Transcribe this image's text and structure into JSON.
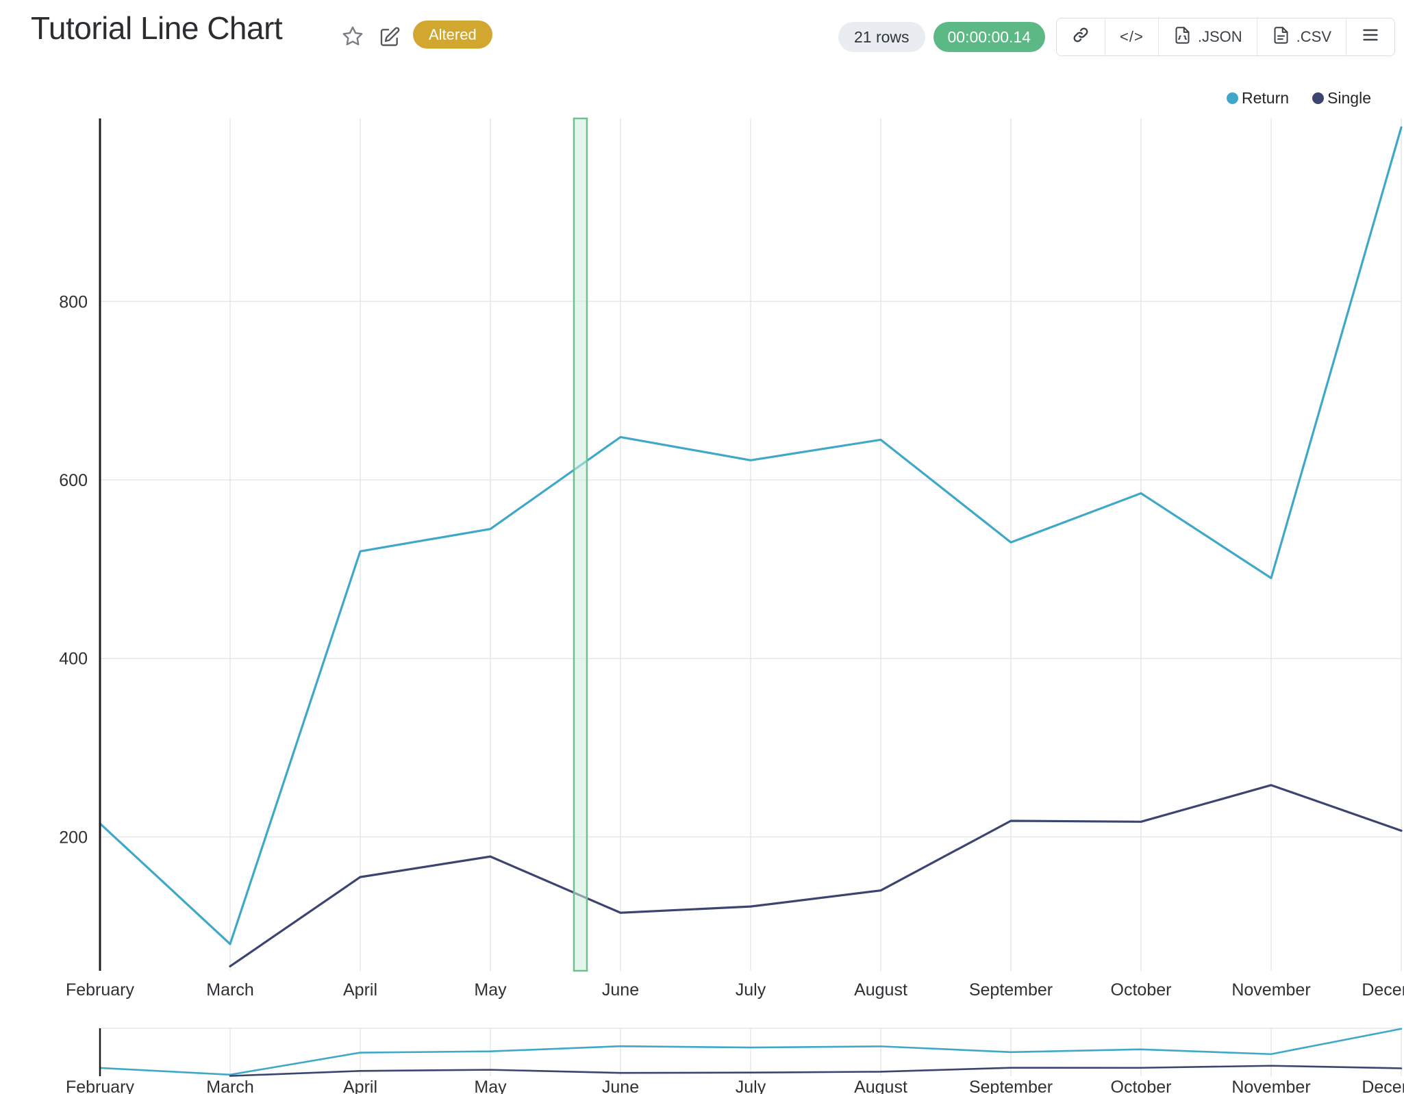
{
  "header": {
    "title": "Tutorial Line Chart",
    "altered_badge": "Altered",
    "rows_badge": "21 rows",
    "timer_badge": "00:00:00.14",
    "code_label": "</>",
    "export_json_label": ".JSON",
    "export_csv_label": ".CSV"
  },
  "legend": {
    "items": [
      {
        "label": "Return",
        "color": "#3fa8c9"
      },
      {
        "label": "Single",
        "color": "#3c4470"
      }
    ]
  },
  "chart_data": {
    "type": "line",
    "title": "Tutorial Line Chart",
    "x": [
      "February",
      "March",
      "April",
      "May",
      "June",
      "July",
      "August",
      "September",
      "October",
      "November",
      "December"
    ],
    "series": [
      {
        "name": "Return",
        "color": "#3fa8c9",
        "values": [
          215,
          80,
          520,
          545,
          648,
          622,
          645,
          530,
          585,
          490,
          995
        ]
      },
      {
        "name": "Single",
        "color": "#3c4470",
        "values": [
          null,
          55,
          155,
          178,
          115,
          122,
          140,
          218,
          217,
          258,
          207
        ]
      }
    ],
    "y_ticks": [
      200,
      400,
      600,
      800
    ],
    "ylim": [
      50,
      1005
    ],
    "grid_on": true,
    "grid_color": "#e7e7e7",
    "axis_color": "#1c1c1c",
    "legend_position": "top-right",
    "has_minimap": true,
    "highlight_band": {
      "from_frac": 0.3642,
      "to_frac": 0.3742,
      "fill": "#cdeeda",
      "stroke": "#6fc08f"
    }
  }
}
